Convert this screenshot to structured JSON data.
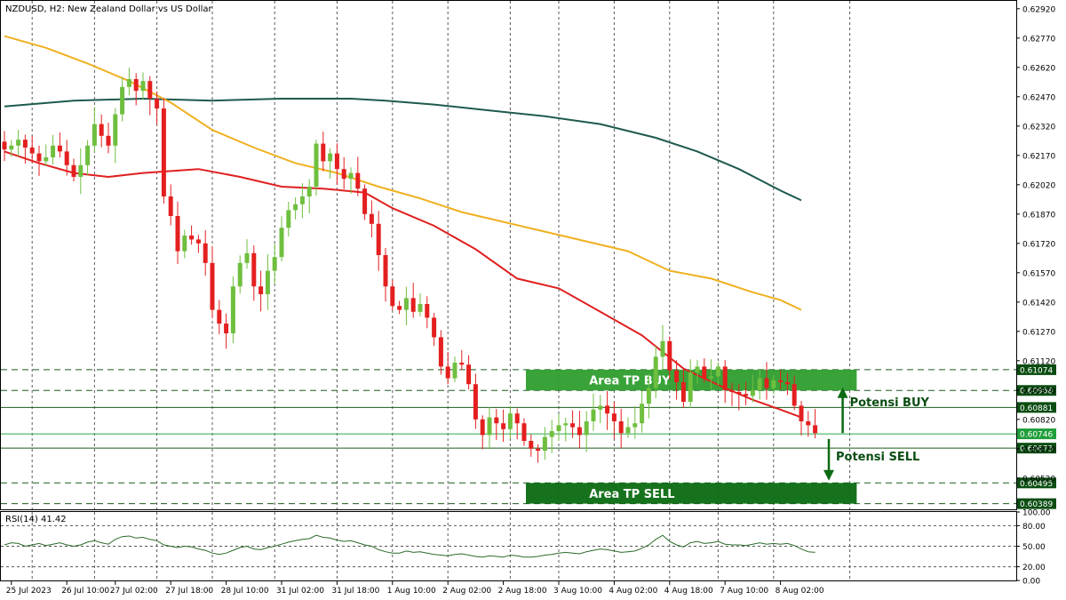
{
  "header": {
    "symbol_line": "NZDUSD, H2:  New Zealand Dollar vs US Dollar"
  },
  "rsi_panel": {
    "label": "RSI(14) 41.42"
  },
  "colors": {
    "bull": "#6fbf3f",
    "bear": "#e41f1f",
    "ma_red": "#e02020",
    "ma_orange": "#f0b020",
    "ma_dark": "#1e5a4e",
    "zone_green": "#2e9e2e",
    "zone_dark_green": "#0b6a12",
    "arrow_green": "#0b6a12",
    "badge_green": "#1f9e3a",
    "rsi_line": "#2b6b2b"
  },
  "chart_data": {
    "type": "candlestick",
    "y_axis": {
      "range": [
        0.6036,
        0.6296
      ],
      "ticks": [
        "0.62920",
        "0.62770",
        "0.62620",
        "0.62470",
        "0.62320",
        "0.62170",
        "0.62020",
        "0.61870",
        "0.61720",
        "0.61570",
        "0.61420",
        "0.61270",
        "0.61120",
        "0.60970",
        "0.60820",
        "0.60670",
        "0.60520"
      ]
    },
    "x_axis": {
      "range": [
        0,
        118
      ],
      "labels": [
        {
          "i": 1,
          "text": "25 Jul 2023"
        },
        {
          "i": 9,
          "text": "26 Jul 10:00"
        },
        {
          "i": 16,
          "text": "27 Jul 02:00"
        },
        {
          "i": 24,
          "text": "27 Jul 18:00"
        },
        {
          "i": 32,
          "text": "28 Jul 10:00"
        },
        {
          "i": 40,
          "text": "31 Jul 02:00"
        },
        {
          "i": 48,
          "text": "31 Jul 18:00"
        },
        {
          "i": 56,
          "text": "1 Aug 10:00"
        },
        {
          "i": 64,
          "text": "2 Aug 02:00"
        },
        {
          "i": 72,
          "text": "2 Aug 18:00"
        },
        {
          "i": 80,
          "text": "3 Aug 10:00"
        },
        {
          "i": 88,
          "text": "4 Aug 02:00"
        },
        {
          "i": 96,
          "text": "4 Aug 18:00"
        },
        {
          "i": 104,
          "text": "7 Aug 10:00"
        },
        {
          "i": 112,
          "text": "8 Aug 02:00"
        }
      ],
      "grid_at": [
        4,
        13,
        22,
        30,
        39,
        48,
        56,
        64,
        73,
        80,
        88,
        96,
        103,
        111,
        122
      ]
    },
    "candles_close_path": [
      0.622,
      0.6222,
      0.6225,
      0.6221,
      0.6218,
      0.6214,
      0.6216,
      0.6222,
      0.6219,
      0.6212,
      0.6206,
      0.6212,
      0.6222,
      0.6233,
      0.6227,
      0.6222,
      0.6238,
      0.6252,
      0.6256,
      0.625,
      0.6255,
      0.6246,
      0.6241,
      0.6196,
      0.6186,
      0.6168,
      0.6176,
      0.6174,
      0.6172,
      0.6162,
      0.6138,
      0.6131,
      0.6126,
      0.615,
      0.6162,
      0.6167,
      0.615,
      0.6146,
      0.6158,
      0.6165,
      0.618,
      0.6189,
      0.6192,
      0.6196,
      0.6201,
      0.6223,
      0.6214,
      0.6218,
      0.621,
      0.6205,
      0.6208,
      0.62,
      0.6187,
      0.6182,
      0.6166,
      0.615,
      0.614,
      0.6138,
      0.6144,
      0.6137,
      0.6141,
      0.6134,
      0.6124,
      0.6109,
      0.6103,
      0.6111,
      0.611,
      0.61,
      0.6082,
      0.6074,
      0.6083,
      0.608,
      0.6077,
      0.6085,
      0.608,
      0.6071,
      0.6067,
      0.6066,
      0.6073,
      0.6076,
      0.6079,
      0.608,
      0.6078,
      0.6074,
      0.6081,
      0.6087,
      0.6089,
      0.6085,
      0.6081,
      0.6075,
      0.6078,
      0.608,
      0.609,
      0.6098,
      0.6114,
      0.6122,
      0.6107,
      0.6101,
      0.6091,
      0.6106,
      0.6109,
      0.6103,
      0.6104,
      0.6109,
      0.6097,
      0.6096,
      0.6095,
      0.6094,
      0.6097,
      0.6103,
      0.6098,
      0.6102,
      0.6101,
      0.61,
      0.6089,
      0.6081,
      0.6079,
      0.6075
    ],
    "series": [
      {
        "key": "ma_dark",
        "points": [
          [
            0,
            0.6242
          ],
          [
            10,
            0.6245
          ],
          [
            20,
            0.6246
          ],
          [
            30,
            0.6245
          ],
          [
            40,
            0.6246
          ],
          [
            50,
            0.6246
          ],
          [
            55,
            0.6245
          ],
          [
            62,
            0.6243
          ],
          [
            70,
            0.624
          ],
          [
            78,
            0.6237
          ],
          [
            86,
            0.6233
          ],
          [
            94,
            0.6226
          ],
          [
            100,
            0.6219
          ],
          [
            106,
            0.621
          ],
          [
            112,
            0.6199
          ],
          [
            115,
            0.6194
          ]
        ]
      },
      {
        "key": "ma_orange",
        "points": [
          [
            0,
            0.6278
          ],
          [
            6,
            0.6272
          ],
          [
            12,
            0.6264
          ],
          [
            18,
            0.6255
          ],
          [
            24,
            0.6244
          ],
          [
            30,
            0.623
          ],
          [
            36,
            0.6221
          ],
          [
            42,
            0.6213
          ],
          [
            48,
            0.6208
          ],
          [
            54,
            0.6201
          ],
          [
            60,
            0.6195
          ],
          [
            66,
            0.6188
          ],
          [
            72,
            0.6183
          ],
          [
            78,
            0.6178
          ],
          [
            84,
            0.6173
          ],
          [
            90,
            0.6168
          ],
          [
            96,
            0.6158
          ],
          [
            102,
            0.6154
          ],
          [
            108,
            0.6147
          ],
          [
            112,
            0.6143
          ],
          [
            115,
            0.6138
          ]
        ]
      },
      {
        "key": "ma_red",
        "points": [
          [
            0,
            0.6219
          ],
          [
            5,
            0.6213
          ],
          [
            10,
            0.6208
          ],
          [
            15,
            0.6206
          ],
          [
            20,
            0.6208
          ],
          [
            28,
            0.621
          ],
          [
            34,
            0.6206
          ],
          [
            40,
            0.6201
          ],
          [
            46,
            0.62
          ],
          [
            52,
            0.6198
          ],
          [
            56,
            0.619
          ],
          [
            62,
            0.6181
          ],
          [
            68,
            0.6169
          ],
          [
            74,
            0.6154
          ],
          [
            80,
            0.6149
          ],
          [
            86,
            0.6137
          ],
          [
            92,
            0.6125
          ],
          [
            98,
            0.6108
          ],
          [
            104,
            0.6098
          ],
          [
            108,
            0.6092
          ],
          [
            112,
            0.6087
          ],
          [
            115,
            0.6083
          ]
        ]
      }
    ],
    "levels": [
      {
        "price": 0.61074,
        "label": "0.61074",
        "style": "dashed",
        "badge": true
      },
      {
        "price": 0.60968,
        "label": "0.60968",
        "style": "dashed",
        "badge": true
      },
      {
        "price": 0.60881,
        "label": "0.60881",
        "style": "solid",
        "badge": true
      },
      {
        "price": 0.60746,
        "label": "0.60746",
        "style": "solid-green",
        "badge": true,
        "badge_color": "green"
      },
      {
        "price": 0.60673,
        "label": "0.60673",
        "style": "solid",
        "badge": true
      },
      {
        "price": 0.60495,
        "label": "0.60495",
        "style": "dashed",
        "badge": true
      },
      {
        "price": 0.60389,
        "label": "0.60389",
        "style": "dashed",
        "badge": true
      }
    ],
    "zones": [
      {
        "label": "Area TP BUY",
        "top": 0.61074,
        "bottom": 0.60968,
        "from": 75,
        "to": 123,
        "color": "zone_green"
      },
      {
        "label": "Area TP SELL",
        "top": 0.60495,
        "bottom": 0.60389,
        "from": 75,
        "to": 123,
        "color": "zone_dark_green"
      }
    ],
    "annotations": [
      {
        "text": "Potensi BUY",
        "arrow": "up",
        "x": 122,
        "from": 0.6075,
        "to": 0.6097
      },
      {
        "text": "Potensi SELL",
        "arrow": "down",
        "x": 120,
        "from": 0.6072,
        "to": 0.6052
      }
    ],
    "rsi": {
      "range": [
        0,
        100
      ],
      "ticks": [
        "100.00",
        "80.00",
        "50.00",
        "20.00",
        "0.00"
      ],
      "levels": [
        80,
        50,
        20
      ],
      "values": [
        52,
        55,
        54,
        50,
        52,
        54,
        51,
        53,
        55,
        52,
        50,
        52,
        56,
        58,
        55,
        53,
        60,
        64,
        65,
        62,
        63,
        60,
        58,
        52,
        50,
        48,
        50,
        49,
        46,
        44,
        40,
        38,
        40,
        44,
        48,
        50,
        46,
        45,
        48,
        50,
        53,
        56,
        58,
        60,
        61,
        66,
        63,
        62,
        59,
        57,
        58,
        55,
        52,
        50,
        45,
        42,
        40,
        40,
        43,
        41,
        42,
        40,
        38,
        37,
        36,
        38,
        39,
        37,
        35,
        34,
        36,
        35,
        34,
        37,
        36,
        34,
        34,
        35,
        37,
        38,
        40,
        41,
        40,
        39,
        42,
        44,
        46,
        45,
        43,
        41,
        42,
        43,
        47,
        52,
        60,
        66,
        57,
        52,
        49,
        55,
        57,
        54,
        55,
        57,
        53,
        52,
        52,
        51,
        53,
        55,
        53,
        54,
        53,
        54,
        51,
        46,
        42,
        41
      ]
    }
  }
}
